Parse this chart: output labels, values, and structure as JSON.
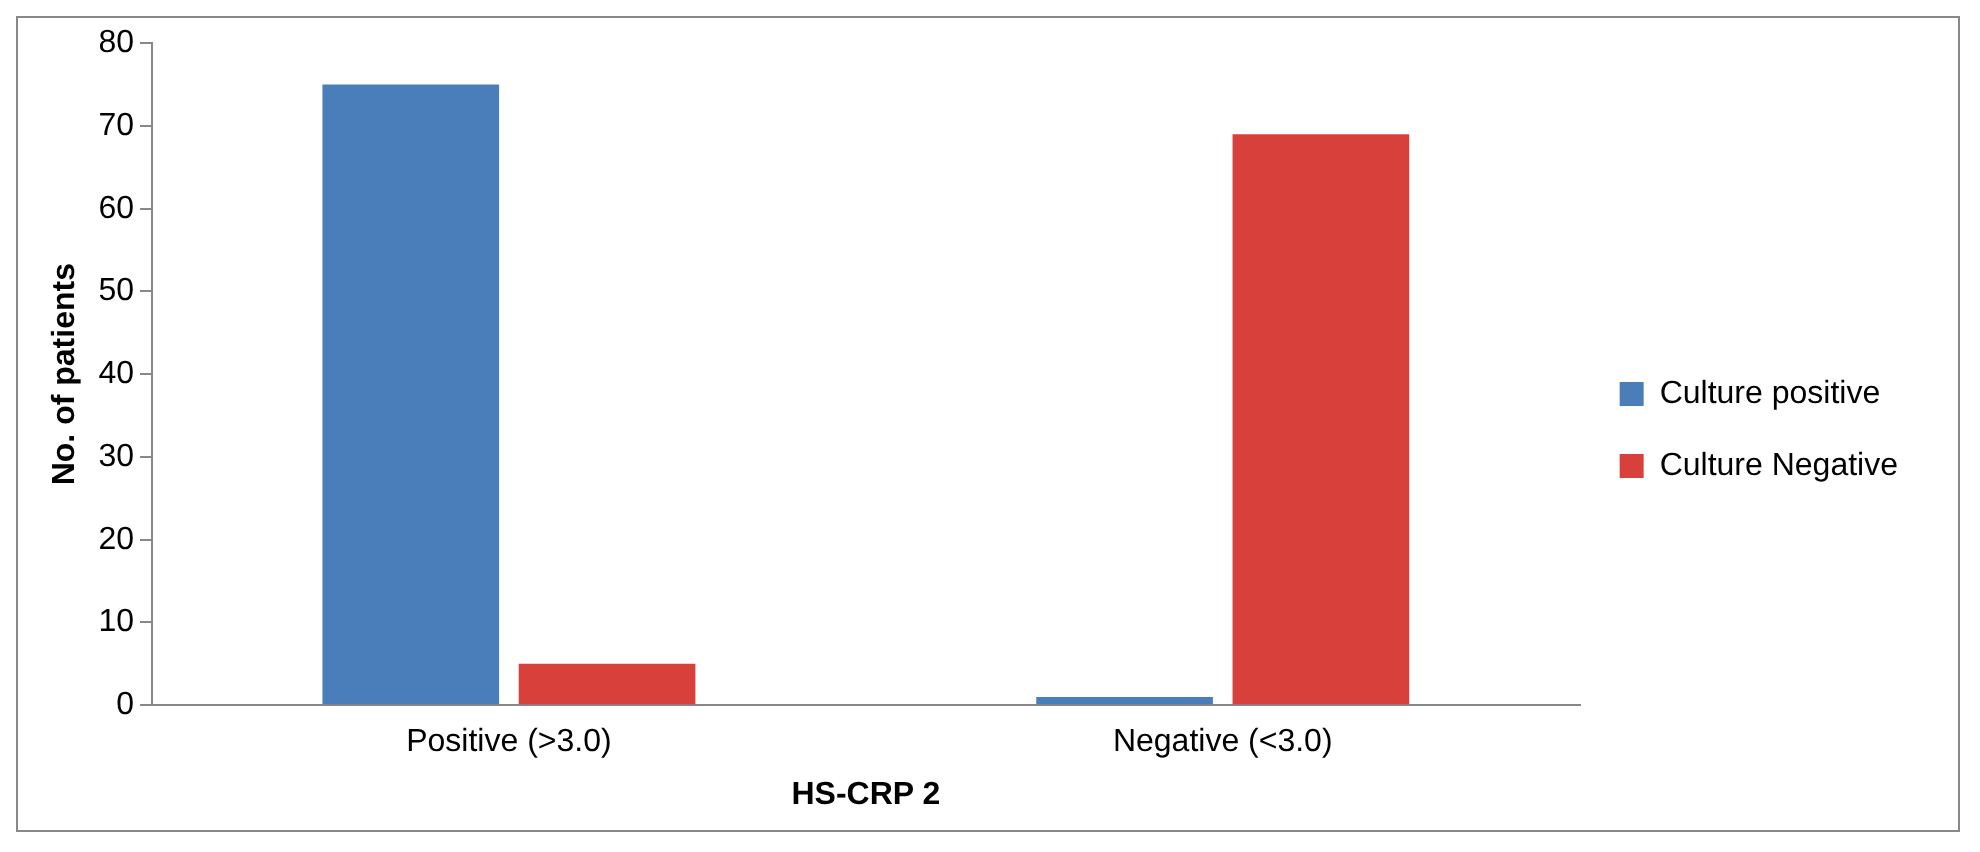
{
  "chart_data": {
    "type": "bar",
    "xlabel": "HS-CRP 2",
    "ylabel": "No. of patients",
    "categories": [
      "Positive (>3.0)",
      "Negative (<3.0)"
    ],
    "series": [
      {
        "name": "Culture positive",
        "color": "#4a7ebb",
        "values": [
          75,
          1
        ]
      },
      {
        "name": "Culture Negative",
        "color": "#d7403b",
        "values": [
          5,
          69
        ]
      }
    ],
    "ylim": [
      0,
      80
    ],
    "yticks": [
      0,
      10,
      20,
      30,
      40,
      50,
      60,
      70,
      80
    ],
    "grid": false,
    "legend": "right"
  }
}
